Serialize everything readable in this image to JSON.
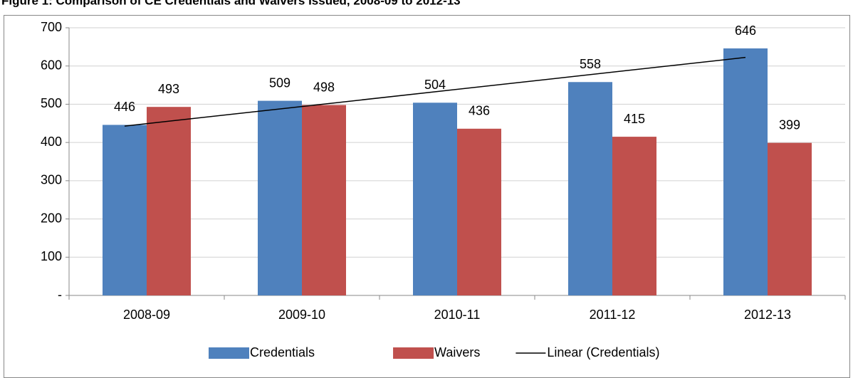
{
  "chart_data": {
    "type": "bar",
    "title": "Figure 1: Comparison of CE Credentials and Waivers Issued, 2008-09 to 2012-13",
    "categories": [
      "2008-09",
      "2009-10",
      "2010-11",
      "2011-12",
      "2012-13"
    ],
    "series": [
      {
        "name": "Credentials",
        "color": "#4f81bd",
        "values": [
          446,
          509,
          504,
          558,
          646
        ]
      },
      {
        "name": "Waivers",
        "color": "#c0504d",
        "values": [
          493,
          498,
          436,
          415,
          399
        ]
      }
    ],
    "trendline": {
      "name": "Linear (Credentials)",
      "series": 0,
      "color": "#000000"
    },
    "ylim": [
      0,
      700
    ],
    "yticks": [
      {
        "value": 0,
        "label": "-"
      },
      100,
      200,
      300,
      400,
      500,
      600,
      700
    ],
    "grid": true,
    "legend": "bottom"
  }
}
